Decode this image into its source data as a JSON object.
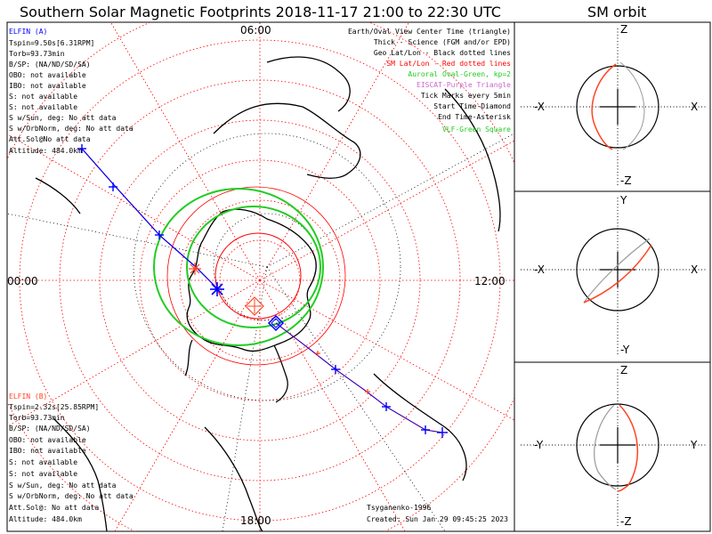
{
  "title": "Southern Solar Magnetic Footprints 2018-11-17 21:00 to 22:30 UTC",
  "orbit_title": "SM orbit",
  "time_labels": {
    "top": "06:00",
    "left": "00:00",
    "right": "12:00",
    "bottom": "18:00"
  },
  "elfin_a": {
    "header": "ELFIN (A)",
    "lines": [
      "Tspin=9.50s[6.31RPM]",
      "Torb=93.73min",
      "B/SP: (NA/ND/SD/SA)",
      "OBO: not available",
      "IBO: not available",
      "S: not available",
      "S: not available",
      "S w/Sun, deg: No att data",
      "S w/OrbNorm, deg: No att data",
      "Att.Sol@No att data",
      "Altitude: 484.0km"
    ]
  },
  "elfin_b": {
    "header": "ELFIN (B)",
    "lines": [
      "Tspin=2.32s[25.85RPM]",
      "Torb=93.73min",
      "B/SP: (NA/ND/SD/SA)",
      "OBO: not available",
      "IBO: not available",
      "S: not available",
      "S: not available",
      "S w/Sun, deg: No att data",
      "S w/OrbNorm, deg: No att data",
      "Att.Sol@: No att data",
      "Altitude: 484.0km"
    ]
  },
  "legend": [
    {
      "text": "Earth/Oval View Center Time (triangle)",
      "color": "#000000"
    },
    {
      "text": "Thick - Science (FGM and/or EPD)",
      "color": "#000000"
    },
    {
      "text": "Geo Lat/Lon - Black dotted lines",
      "color": "#000000"
    },
    {
      "text": "SM Lat/Lon - Red dotted lines",
      "color": "#ff0000"
    },
    {
      "text": "Auroral Oval-Green, kp=2",
      "color": "#22cc22"
    },
    {
      "text": "EISCAT-Purple Triangle",
      "color": "#cc66cc"
    },
    {
      "text": "Tick Marks every 5min",
      "color": "#000000"
    },
    {
      "text": "Start Time-Diamond",
      "color": "#000000"
    },
    {
      "text": "End Time-Asterisk",
      "color": "#000000"
    },
    {
      "text": "VLF-Green Square",
      "color": "#22cc22"
    }
  ],
  "credits": {
    "author": "Tsyganenko-1996",
    "created": "Created: Sun Jan 29 09:45:25 2023"
  },
  "orbit_panels": [
    {
      "top": "Z",
      "bottom": "-Z",
      "left": "-X",
      "right": "X"
    },
    {
      "top": "Y",
      "bottom": "-Y",
      "left": "-X",
      "right": "X"
    },
    {
      "top": "Z",
      "bottom": "-Z",
      "left": "-Y",
      "right": "Y"
    }
  ],
  "colors": {
    "elfin_a": "#0000ff",
    "elfin_b": "#ff4422",
    "oval": "#22cc22",
    "sm_grid": "#ff0000"
  }
}
